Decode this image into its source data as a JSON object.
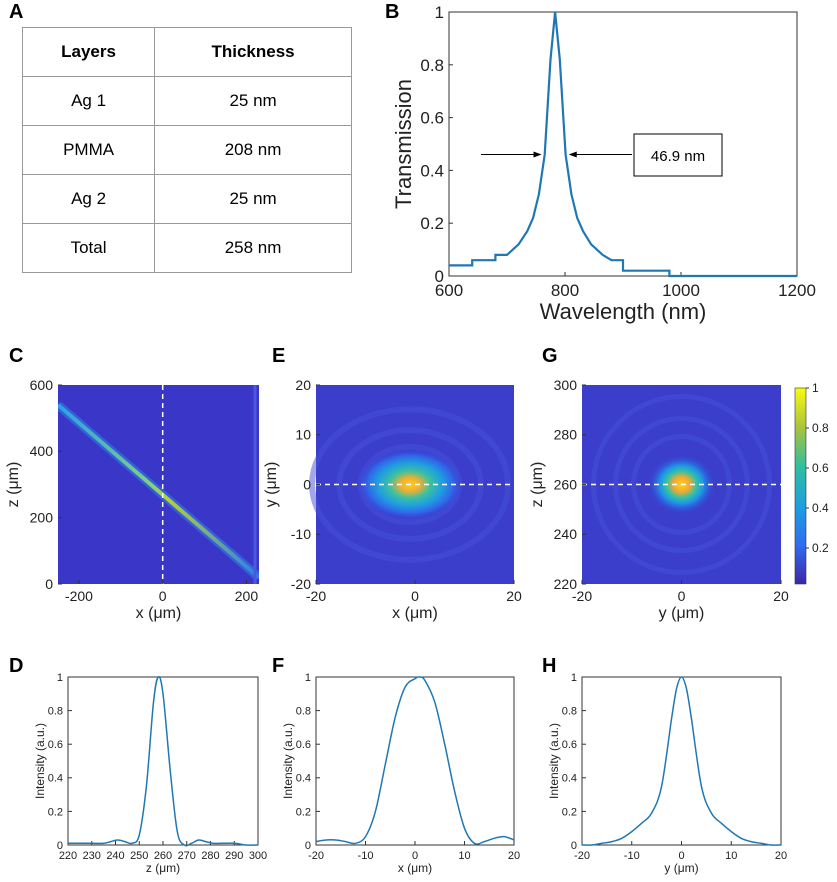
{
  "letters": {
    "A": "A",
    "B": "B",
    "C": "C",
    "D": "D",
    "E": "E",
    "F": "F",
    "G": "G",
    "H": "H"
  },
  "table": {
    "headers": [
      "Layers",
      "Thickness"
    ],
    "rows": [
      [
        "Ag 1",
        "25 nm"
      ],
      [
        "PMMA",
        "208 nm"
      ],
      [
        "Ag 2",
        "25 nm"
      ],
      [
        "Total",
        "258 nm"
      ]
    ]
  },
  "chart_data": [
    {
      "id": "B",
      "type": "line",
      "xlabel": "Wavelength (nm)",
      "ylabel": "Transmission",
      "xlim": [
        600,
        1200
      ],
      "ylim": [
        0,
        1
      ],
      "xticks": [
        600,
        800,
        1000,
        1200
      ],
      "xtick_labels": [
        "600",
        "800",
        "1000",
        "1200"
      ],
      "yticks": [
        0,
        0.2,
        0.4,
        0.6,
        0.8,
        1
      ],
      "ytick_labels": [
        "0",
        "0.2",
        "0.4",
        "0.6",
        "0.8",
        "1"
      ],
      "color": "#1f77b4",
      "peak": {
        "center": 783,
        "fwhm": 46.9,
        "max": 1.0
      },
      "baseline": [
        [
          600,
          0.04
        ],
        [
          640,
          0.04
        ],
        [
          640,
          0.06
        ],
        [
          680,
          0.06
        ],
        [
          680,
          0.08
        ],
        [
          700,
          0.08
        ],
        [
          720,
          0.12
        ],
        [
          735,
          0.17
        ],
        [
          745,
          0.22
        ],
        [
          755,
          0.31
        ],
        [
          765,
          0.46
        ],
        [
          775,
          0.82
        ],
        [
          783,
          1.0
        ],
        [
          791,
          0.82
        ],
        [
          801,
          0.46
        ],
        [
          811,
          0.31
        ],
        [
          821,
          0.22
        ],
        [
          831,
          0.17
        ],
        [
          845,
          0.12
        ],
        [
          865,
          0.08
        ],
        [
          880,
          0.06
        ],
        [
          900,
          0.06
        ],
        [
          900,
          0.02
        ],
        [
          980,
          0.02
        ],
        [
          980,
          0.0
        ],
        [
          1200,
          0.0
        ]
      ],
      "annotation": "46.9 nm"
    },
    {
      "id": "C",
      "type": "heatmap",
      "xlabel": "x (μm)",
      "ylabel": "z (μm)",
      "xlim": [
        -250,
        230
      ],
      "ylim": [
        0,
        600
      ],
      "xticks": [
        -200,
        0,
        200
      ],
      "xtick_labels": [
        "-200",
        "0",
        "200"
      ],
      "yticks": [
        0,
        200,
        400,
        600
      ],
      "ytick_labels": [
        "0",
        "200",
        "400",
        "600"
      ],
      "description_line": {
        "from": [
          -250,
          540
        ],
        "to": [
          230,
          20
        ]
      },
      "dashed_x": 0
    },
    {
      "id": "E",
      "type": "heatmap",
      "xlabel": "x (μm)",
      "ylabel": "y (μm)",
      "xlim": [
        -20,
        20
      ],
      "ylim": [
        -20,
        20
      ],
      "xticks": [
        -20,
        0,
        20
      ],
      "xtick_labels": [
        "-20",
        "0",
        "20"
      ],
      "yticks": [
        -20,
        -10,
        0,
        10,
        20
      ],
      "ytick_labels": [
        "-20",
        "-10",
        "0",
        "10",
        "20"
      ],
      "spot_center": [
        -1,
        0
      ],
      "dashed_y": 0
    },
    {
      "id": "G",
      "type": "heatmap",
      "xlabel": "y (μm)",
      "ylabel": "z (μm)",
      "xlim": [
        -20,
        20
      ],
      "ylim": [
        220,
        300
      ],
      "xticks": [
        -20,
        0,
        20
      ],
      "xtick_labels": [
        "-20",
        "0",
        "20"
      ],
      "yticks": [
        220,
        240,
        260,
        280,
        300
      ],
      "ytick_labels": [
        "220",
        "240",
        "260",
        "280",
        "300"
      ],
      "spot_center": [
        0,
        260
      ],
      "dashed_y": 260,
      "colorbar_ticks": [
        0.2,
        0.4,
        0.6,
        0.8,
        1
      ],
      "colorbar_labels": [
        "0.2",
        "0.4",
        "0.6",
        "0.8",
        "1"
      ]
    },
    {
      "id": "D",
      "type": "line",
      "xlabel": "z (μm)",
      "ylabel": "Intensity (a.u.)",
      "xlim": [
        220,
        300
      ],
      "ylim": [
        0,
        1
      ],
      "xticks": [
        220,
        230,
        240,
        250,
        260,
        270,
        280,
        290,
        300
      ],
      "xtick_labels": [
        "220",
        "230",
        "240",
        "250",
        "260",
        "270",
        "280",
        "290",
        "300"
      ],
      "yticks": [
        0,
        0.2,
        0.4,
        0.6,
        0.8,
        1
      ],
      "ytick_labels": [
        "0",
        "0.2",
        "0.4",
        "0.6",
        "0.8",
        "1"
      ],
      "x": [
        220,
        225,
        230,
        235,
        238,
        241,
        244,
        247,
        250,
        253,
        256,
        258,
        260,
        263,
        266,
        269,
        272,
        275,
        278,
        281,
        285,
        290,
        295,
        300
      ],
      "y": [
        0.01,
        0.01,
        0.01,
        0.01,
        0.02,
        0.03,
        0.02,
        0.01,
        0.06,
        0.35,
        0.85,
        1.0,
        0.9,
        0.45,
        0.08,
        0.0,
        0.01,
        0.03,
        0.02,
        0.01,
        0.01,
        0.01,
        0.0,
        0.0
      ]
    },
    {
      "id": "F",
      "type": "line",
      "xlabel": "x (μm)",
      "ylabel": "Intensity (a.u.)",
      "xlim": [
        -20,
        20
      ],
      "ylim": [
        0,
        1
      ],
      "xticks": [
        -20,
        -10,
        0,
        10,
        20
      ],
      "xtick_labels": [
        "-20",
        "-10",
        "0",
        "10",
        "20"
      ],
      "yticks": [
        0,
        0.2,
        0.4,
        0.6,
        0.8,
        1
      ],
      "ytick_labels": [
        "0",
        "0.2",
        "0.4",
        "0.6",
        "0.8",
        "1"
      ],
      "x": [
        -20,
        -18,
        -16,
        -14,
        -12,
        -10,
        -8,
        -6,
        -4,
        -2,
        0,
        1,
        2,
        4,
        6,
        8,
        10,
        12,
        14,
        16,
        18,
        20
      ],
      "y": [
        0.02,
        0.03,
        0.03,
        0.02,
        0.01,
        0.05,
        0.2,
        0.48,
        0.76,
        0.94,
        0.99,
        1.0,
        0.98,
        0.85,
        0.6,
        0.32,
        0.1,
        0.01,
        0.02,
        0.04,
        0.05,
        0.03
      ]
    },
    {
      "id": "H",
      "type": "line",
      "xlabel": "y (μm)",
      "ylabel": "Intensity (a.u.)",
      "xlim": [
        -20,
        20
      ],
      "ylim": [
        0,
        1
      ],
      "xticks": [
        -20,
        -10,
        0,
        10,
        20
      ],
      "xtick_labels": [
        "-20",
        "-10",
        "0",
        "10",
        "20"
      ],
      "yticks": [
        0,
        0.2,
        0.4,
        0.6,
        0.8,
        1
      ],
      "ytick_labels": [
        "0",
        "0.2",
        "0.4",
        "0.6",
        "0.8",
        "1"
      ],
      "x": [
        -20,
        -18,
        -16,
        -14,
        -12,
        -10,
        -8,
        -6,
        -4,
        -2,
        -1,
        0,
        1,
        2,
        4,
        6,
        8,
        10,
        12,
        14,
        16,
        18,
        20
      ],
      "y": [
        0.0,
        0.0,
        0.01,
        0.02,
        0.04,
        0.08,
        0.13,
        0.19,
        0.35,
        0.75,
        0.93,
        1.0,
        0.93,
        0.75,
        0.35,
        0.19,
        0.13,
        0.08,
        0.04,
        0.02,
        0.01,
        0.0,
        0.0
      ]
    }
  ]
}
